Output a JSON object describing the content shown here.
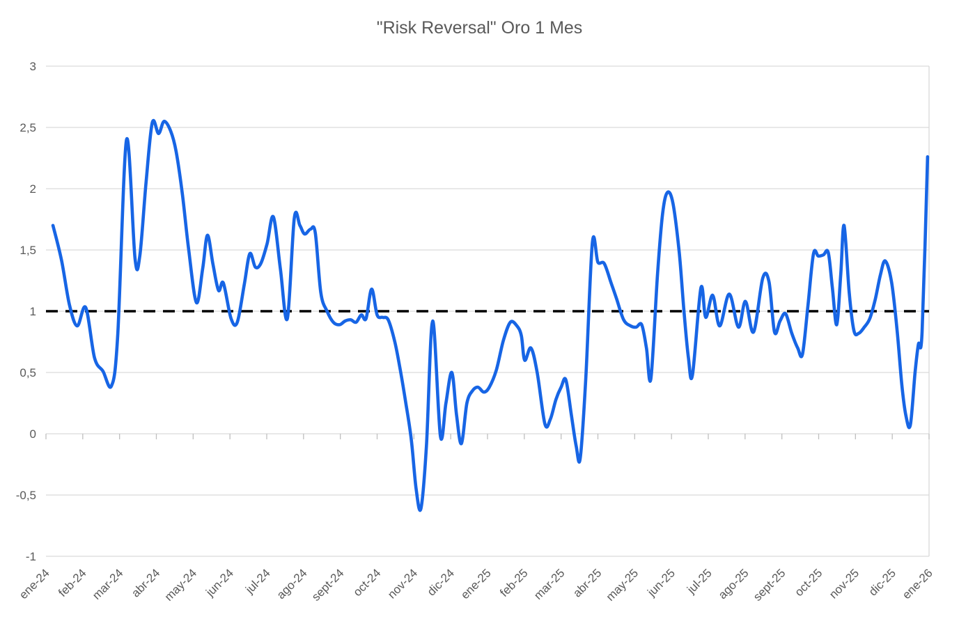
{
  "page": {
    "background": "#ffffff"
  },
  "chart_data": {
    "type": "line",
    "title": "\"Risk Reversal\" Oro 1 Mes",
    "xlabel": "",
    "ylabel": "",
    "ylim": [
      -1,
      3
    ],
    "grid": "horizontal",
    "legend": "none",
    "colors": {
      "series": "#1765e5",
      "gridline": "#d9d9d9",
      "tick": "#bfbfbf",
      "axis_text": "#595959",
      "reference_line": "#000000",
      "background": "#ffffff"
    },
    "y_tick_labels": [
      "3",
      "2,5",
      "2",
      "1,5",
      "1",
      "0,5",
      "0",
      "-0,5",
      "-1"
    ],
    "y_tick_values": [
      3,
      2.5,
      2,
      1.5,
      1,
      0.5,
      0,
      -0.5,
      -1
    ],
    "x_tick_labels": [
      "ene-24",
      "feb-24",
      "mar-24",
      "abr-24",
      "may-24",
      "jun-24",
      "jul-24",
      "ago-24",
      "sept-24",
      "oct-24",
      "nov-24",
      "dic-24",
      "ene-25",
      "feb-25",
      "mar-25",
      "abr-25",
      "may-25",
      "jun-25",
      "jul-25",
      "ago-25",
      "sept-25",
      "oct-25",
      "nov-25",
      "dic-25",
      "ene-26"
    ],
    "reference_line": {
      "value": 1,
      "style": "dashed",
      "color": "#000000"
    },
    "series": [
      {
        "name": "Risk Reversal Oro 1 Mes",
        "color": "#1765e5",
        "x_unit": "months_since_ene24",
        "points": [
          [
            0.19,
            1.7
          ],
          [
            0.42,
            1.42
          ],
          [
            0.64,
            1.05
          ],
          [
            0.85,
            0.88
          ],
          [
            1.08,
            1.03
          ],
          [
            1.32,
            0.62
          ],
          [
            1.55,
            0.51
          ],
          [
            1.78,
            0.39
          ],
          [
            1.95,
            0.8
          ],
          [
            2.19,
            2.4
          ],
          [
            2.42,
            1.43
          ],
          [
            2.55,
            1.45
          ],
          [
            2.72,
            2.05
          ],
          [
            2.89,
            2.54
          ],
          [
            3.06,
            2.45
          ],
          [
            3.21,
            2.55
          ],
          [
            3.39,
            2.47
          ],
          [
            3.54,
            2.3
          ],
          [
            3.71,
            1.95
          ],
          [
            3.88,
            1.5
          ],
          [
            4.09,
            1.07
          ],
          [
            4.26,
            1.35
          ],
          [
            4.39,
            1.62
          ],
          [
            4.54,
            1.38
          ],
          [
            4.69,
            1.17
          ],
          [
            4.82,
            1.23
          ],
          [
            5.03,
            0.94
          ],
          [
            5.2,
            0.91
          ],
          [
            5.39,
            1.22
          ],
          [
            5.54,
            1.47
          ],
          [
            5.69,
            1.36
          ],
          [
            5.84,
            1.39
          ],
          [
            6.01,
            1.55
          ],
          [
            6.18,
            1.77
          ],
          [
            6.37,
            1.35
          ],
          [
            6.56,
            0.94
          ],
          [
            6.75,
            1.76
          ],
          [
            6.9,
            1.7
          ],
          [
            7.03,
            1.63
          ],
          [
            7.19,
            1.67
          ],
          [
            7.32,
            1.64
          ],
          [
            7.47,
            1.15
          ],
          [
            7.64,
            1.0
          ],
          [
            7.81,
            0.91
          ],
          [
            7.98,
            0.89
          ],
          [
            8.13,
            0.92
          ],
          [
            8.28,
            0.93
          ],
          [
            8.43,
            0.91
          ],
          [
            8.57,
            0.97
          ],
          [
            8.7,
            0.94
          ],
          [
            8.85,
            1.18
          ],
          [
            9.0,
            0.97
          ],
          [
            9.15,
            0.95
          ],
          [
            9.3,
            0.93
          ],
          [
            9.48,
            0.75
          ],
          [
            9.63,
            0.52
          ],
          [
            9.78,
            0.25
          ],
          [
            9.93,
            -0.05
          ],
          [
            10.06,
            -0.45
          ],
          [
            10.19,
            -0.61
          ],
          [
            10.34,
            -0.1
          ],
          [
            10.51,
            0.92
          ],
          [
            10.72,
            -0.02
          ],
          [
            10.87,
            0.25
          ],
          [
            11.03,
            0.5
          ],
          [
            11.16,
            0.15
          ],
          [
            11.29,
            -0.08
          ],
          [
            11.44,
            0.25
          ],
          [
            11.59,
            0.35
          ],
          [
            11.74,
            0.38
          ],
          [
            11.9,
            0.34
          ],
          [
            12.05,
            0.38
          ],
          [
            12.24,
            0.52
          ],
          [
            12.43,
            0.76
          ],
          [
            12.62,
            0.91
          ],
          [
            12.8,
            0.88
          ],
          [
            12.92,
            0.8
          ],
          [
            13.01,
            0.6
          ],
          [
            13.18,
            0.7
          ],
          [
            13.35,
            0.5
          ],
          [
            13.56,
            0.08
          ],
          [
            13.71,
            0.12
          ],
          [
            13.86,
            0.28
          ],
          [
            14.0,
            0.38
          ],
          [
            14.13,
            0.44
          ],
          [
            14.28,
            0.15
          ],
          [
            14.41,
            -0.1
          ],
          [
            14.52,
            -0.2
          ],
          [
            14.67,
            0.45
          ],
          [
            14.85,
            1.56
          ],
          [
            15.0,
            1.4
          ],
          [
            15.17,
            1.39
          ],
          [
            15.36,
            1.23
          ],
          [
            15.51,
            1.1
          ],
          [
            15.7,
            0.93
          ],
          [
            15.89,
            0.88
          ],
          [
            16.04,
            0.87
          ],
          [
            16.19,
            0.89
          ],
          [
            16.32,
            0.7
          ],
          [
            16.44,
            0.45
          ],
          [
            16.62,
            1.3
          ],
          [
            16.76,
            1.8
          ],
          [
            16.89,
            1.97
          ],
          [
            17.04,
            1.88
          ],
          [
            17.21,
            1.48
          ],
          [
            17.34,
            1.0
          ],
          [
            17.46,
            0.62
          ],
          [
            17.57,
            0.48
          ],
          [
            17.8,
            1.19
          ],
          [
            17.93,
            0.95
          ],
          [
            18.12,
            1.13
          ],
          [
            18.31,
            0.88
          ],
          [
            18.57,
            1.14
          ],
          [
            18.82,
            0.87
          ],
          [
            19.01,
            1.08
          ],
          [
            19.23,
            0.83
          ],
          [
            19.48,
            1.27
          ],
          [
            19.65,
            1.24
          ],
          [
            19.8,
            0.83
          ],
          [
            19.95,
            0.92
          ],
          [
            20.1,
            0.98
          ],
          [
            20.27,
            0.82
          ],
          [
            20.43,
            0.7
          ],
          [
            20.56,
            0.65
          ],
          [
            20.71,
            1.05
          ],
          [
            20.86,
            1.47
          ],
          [
            20.99,
            1.45
          ],
          [
            21.13,
            1.46
          ],
          [
            21.26,
            1.48
          ],
          [
            21.37,
            1.2
          ],
          [
            21.49,
            0.89
          ],
          [
            21.6,
            1.3
          ],
          [
            21.69,
            1.7
          ],
          [
            21.83,
            1.15
          ],
          [
            21.96,
            0.84
          ],
          [
            22.09,
            0.82
          ],
          [
            22.24,
            0.87
          ],
          [
            22.39,
            0.94
          ],
          [
            22.54,
            1.1
          ],
          [
            22.68,
            1.3
          ],
          [
            22.81,
            1.41
          ],
          [
            22.98,
            1.24
          ],
          [
            23.13,
            0.85
          ],
          [
            23.26,
            0.4
          ],
          [
            23.37,
            0.15
          ],
          [
            23.49,
            0.07
          ],
          [
            23.62,
            0.5
          ],
          [
            23.71,
            0.73
          ],
          [
            23.81,
            0.83
          ],
          [
            23.96,
            2.26
          ]
        ]
      }
    ]
  }
}
